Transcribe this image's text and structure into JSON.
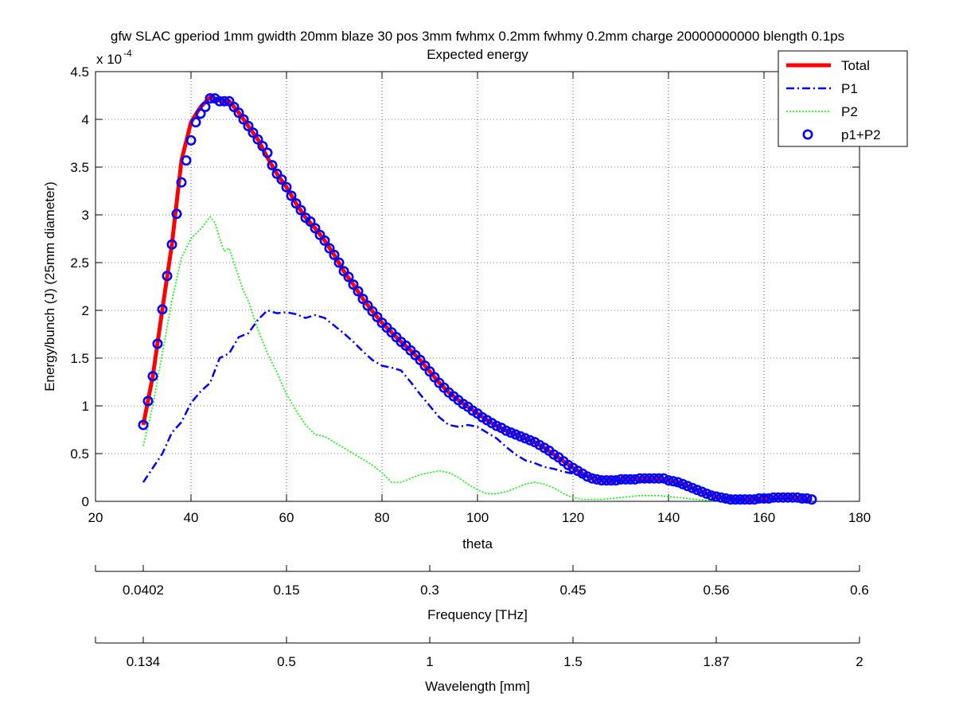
{
  "figure": {
    "title": "gfw SLAC gperiod 1mm gwidth 20mm blaze 30 pos 3mm fwhmx 0.2mm fwhmy 0.2mm charge 20000000000 blength 0.1ps",
    "subtitle": "Expected energy"
  },
  "chart_data": {
    "type": "line",
    "title": "gfw SLAC gperiod 1mm gwidth 20mm blaze 30 pos 3mm fwhmx 0.2mm fwhmy 0.2mm charge 20000000000 blength 0.1ps",
    "subtitle": "Expected energy",
    "xlabel": "theta",
    "ylabel": "Energy/bunch (J)  (25mm diameter)",
    "y_multiplier_label": "x 10",
    "y_multiplier_exponent": "-4",
    "xlim": [
      20,
      180
    ],
    "ylim": [
      0,
      0.00045
    ],
    "grid": true,
    "legend_position": "top-right",
    "x_ticks": [
      "20",
      "40",
      "60",
      "80",
      "100",
      "120",
      "140",
      "160",
      "180"
    ],
    "y_ticks": [
      "0",
      "0.5",
      "1",
      "1.5",
      "2",
      "2.5",
      "3",
      "3.5",
      "4",
      "4.5"
    ],
    "x_tick_values": [
      20,
      40,
      60,
      80,
      100,
      120,
      140,
      160,
      180
    ],
    "y_tick_values": [
      0,
      0.5,
      1,
      1.5,
      2,
      2.5,
      3,
      3.5,
      4,
      4.5
    ],
    "secondary_axes": [
      {
        "label": "Frequency [THz]",
        "ticks": [
          {
            "theta": 30,
            "label": "0.0402"
          },
          {
            "theta": 60,
            "label": "0.15"
          },
          {
            "theta": 90,
            "label": "0.3"
          },
          {
            "theta": 120,
            "label": "0.45"
          },
          {
            "theta": 150,
            "label": "0.56"
          },
          {
            "theta": 180,
            "label": "0.6"
          }
        ]
      },
      {
        "label": "Wavelength [mm]",
        "ticks": [
          {
            "theta": 30,
            "label": "0.134"
          },
          {
            "theta": 60,
            "label": "0.5"
          },
          {
            "theta": 90,
            "label": "1"
          },
          {
            "theta": 120,
            "label": "1.5"
          },
          {
            "theta": 150,
            "label": "1.87"
          },
          {
            "theta": 180,
            "label": "2"
          }
        ]
      }
    ],
    "series": [
      {
        "name": "Total",
        "color": "#ff0000",
        "style": "solid-thick",
        "x": [
          30,
          32,
          34,
          36,
          38,
          40,
          42,
          44,
          45,
          46,
          48,
          50,
          52,
          54,
          56,
          58,
          60,
          62,
          64,
          66,
          68,
          70,
          72,
          74,
          76,
          78,
          80,
          82,
          84,
          86,
          88,
          90,
          92,
          94,
          96,
          98,
          100,
          102,
          104,
          106,
          108,
          110,
          112,
          114,
          116,
          118,
          120,
          122,
          124,
          126,
          128,
          130,
          132,
          134,
          136,
          138,
          140,
          142,
          144,
          146,
          148,
          150,
          152,
          154,
          156,
          158,
          160,
          162,
          164,
          166,
          168,
          170
        ],
        "y": [
          0.8,
          1.31,
          2.01,
          2.69,
          3.57,
          3.97,
          4.13,
          4.23,
          4.22,
          4.2,
          4.19,
          4.07,
          3.93,
          3.79,
          3.6,
          3.43,
          3.29,
          3.12,
          2.97,
          2.86,
          2.73,
          2.58,
          2.41,
          2.27,
          2.12,
          1.99,
          1.87,
          1.77,
          1.67,
          1.58,
          1.48,
          1.36,
          1.24,
          1.14,
          1.06,
          0.99,
          0.92,
          0.85,
          0.79,
          0.74,
          0.7,
          0.66,
          0.62,
          0.56,
          0.49,
          0.42,
          0.35,
          0.29,
          0.24,
          0.22,
          0.22,
          0.23,
          0.23,
          0.24,
          0.24,
          0.24,
          0.22,
          0.2,
          0.16,
          0.12,
          0.08,
          0.05,
          0.03,
          0.02,
          0.02,
          0.02,
          0.03,
          0.04,
          0.04,
          0.04,
          0.03,
          0.02
        ]
      },
      {
        "name": "P1",
        "color": "#0000ff",
        "style": "dash-dot",
        "x": [
          30,
          32,
          34,
          36,
          38,
          40,
          42,
          44,
          46,
          48,
          50,
          52,
          54,
          56,
          58,
          60,
          62,
          64,
          66,
          68,
          70,
          72,
          74,
          76,
          78,
          80,
          82,
          84,
          86,
          88,
          90,
          92,
          94,
          96,
          98,
          100,
          102,
          104,
          106,
          108,
          110,
          112,
          114,
          116,
          118,
          120,
          122,
          124,
          126,
          128,
          130,
          132,
          134,
          136,
          138,
          140,
          142,
          144,
          146,
          148,
          150,
          152,
          154,
          156,
          158,
          160,
          162,
          164,
          166,
          168,
          170
        ],
        "y": [
          0.2,
          0.35,
          0.5,
          0.72,
          0.83,
          1.03,
          1.15,
          1.24,
          1.5,
          1.55,
          1.72,
          1.76,
          1.9,
          2.0,
          1.97,
          1.98,
          1.96,
          1.92,
          1.95,
          1.92,
          1.84,
          1.76,
          1.67,
          1.57,
          1.48,
          1.42,
          1.4,
          1.37,
          1.25,
          1.12,
          1.0,
          0.88,
          0.8,
          0.78,
          0.8,
          0.78,
          0.72,
          0.66,
          0.57,
          0.49,
          0.43,
          0.4,
          0.36,
          0.34,
          0.31,
          0.29,
          0.27,
          0.25,
          0.23,
          0.22,
          0.22,
          0.22,
          0.22,
          0.22,
          0.21,
          0.2,
          0.18,
          0.15,
          0.11,
          0.07,
          0.04,
          0.03,
          0.02,
          0.02,
          0.02,
          0.02,
          0.03,
          0.03,
          0.03,
          0.02,
          0.02
        ]
      },
      {
        "name": "P2",
        "color": "#00ff00",
        "style": "dotted",
        "x": [
          30,
          32,
          34,
          36,
          38,
          40,
          42,
          44,
          45,
          46,
          47,
          48,
          50,
          51,
          52,
          54,
          56,
          58,
          60,
          62,
          64,
          66,
          68,
          70,
          72,
          74,
          76,
          78,
          80,
          82,
          84,
          86,
          88,
          90,
          92,
          94,
          96,
          98,
          100,
          102,
          104,
          106,
          108,
          110,
          112,
          114,
          116,
          118,
          120,
          122,
          124,
          126,
          128,
          130,
          132,
          134,
          136,
          138,
          140,
          142,
          144,
          146,
          148,
          150
        ],
        "y": [
          0.58,
          1.0,
          1.55,
          2.1,
          2.55,
          2.75,
          2.85,
          2.98,
          2.92,
          2.75,
          2.62,
          2.65,
          2.35,
          2.2,
          2.1,
          1.8,
          1.55,
          1.35,
          1.12,
          0.95,
          0.8,
          0.7,
          0.68,
          0.62,
          0.56,
          0.5,
          0.44,
          0.38,
          0.3,
          0.2,
          0.2,
          0.24,
          0.28,
          0.3,
          0.32,
          0.3,
          0.25,
          0.18,
          0.12,
          0.08,
          0.08,
          0.1,
          0.14,
          0.18,
          0.2,
          0.18,
          0.14,
          0.08,
          0.04,
          0.02,
          0.02,
          0.02,
          0.03,
          0.04,
          0.05,
          0.06,
          0.06,
          0.06,
          0.05,
          0.04,
          0.03,
          0.02,
          0.01,
          0.0
        ]
      },
      {
        "name": "p1+P2",
        "color": "#0000ff",
        "style": "circle-markers",
        "x": [
          30,
          31,
          32,
          33,
          34,
          35,
          36,
          37,
          38,
          39,
          40,
          41,
          42,
          43,
          44,
          45,
          46,
          47,
          48,
          49,
          50,
          51,
          52,
          53,
          54,
          55,
          56,
          57,
          58,
          59,
          60,
          61,
          62,
          63,
          64,
          65,
          66,
          67,
          68,
          69,
          70,
          71,
          72,
          73,
          74,
          75,
          76,
          77,
          78,
          79,
          80,
          81,
          82,
          83,
          84,
          85,
          86,
          87,
          88,
          89,
          90,
          91,
          92,
          93,
          94,
          95,
          96,
          97,
          98,
          99,
          100,
          101,
          102,
          103,
          104,
          105,
          106,
          107,
          108,
          109,
          110,
          111,
          112,
          113,
          114,
          115,
          116,
          117,
          118,
          119,
          120,
          121,
          122,
          123,
          124,
          125,
          126,
          127,
          128,
          129,
          130,
          131,
          132,
          133,
          134,
          135,
          136,
          137,
          138,
          139,
          140,
          141,
          142,
          143,
          144,
          145,
          146,
          147,
          148,
          149,
          150,
          151,
          152,
          153,
          154,
          155,
          156,
          157,
          158,
          159,
          160,
          161,
          162,
          163,
          164,
          165,
          166,
          167,
          168,
          169,
          170
        ],
        "y": [
          0.8,
          1.05,
          1.31,
          1.65,
          2.01,
          2.36,
          2.69,
          3.01,
          3.34,
          3.57,
          3.78,
          3.97,
          4.06,
          4.13,
          4.22,
          4.22,
          4.19,
          4.19,
          4.19,
          4.13,
          4.07,
          4.0,
          3.93,
          3.86,
          3.79,
          3.72,
          3.65,
          3.52,
          3.43,
          3.37,
          3.29,
          3.2,
          3.12,
          3.05,
          2.97,
          2.93,
          2.86,
          2.79,
          2.73,
          2.65,
          2.58,
          2.5,
          2.41,
          2.35,
          2.27,
          2.2,
          2.12,
          2.05,
          1.99,
          1.93,
          1.87,
          1.82,
          1.77,
          1.72,
          1.67,
          1.63,
          1.58,
          1.53,
          1.48,
          1.42,
          1.36,
          1.3,
          1.24,
          1.19,
          1.14,
          1.1,
          1.06,
          1.02,
          0.99,
          0.95,
          0.92,
          0.88,
          0.85,
          0.82,
          0.79,
          0.77,
          0.74,
          0.72,
          0.7,
          0.68,
          0.66,
          0.64,
          0.62,
          0.59,
          0.56,
          0.53,
          0.49,
          0.46,
          0.42,
          0.38,
          0.35,
          0.32,
          0.29,
          0.26,
          0.24,
          0.23,
          0.22,
          0.22,
          0.22,
          0.22,
          0.23,
          0.23,
          0.23,
          0.23,
          0.24,
          0.24,
          0.24,
          0.24,
          0.24,
          0.24,
          0.22,
          0.21,
          0.2,
          0.18,
          0.16,
          0.14,
          0.12,
          0.1,
          0.08,
          0.06,
          0.05,
          0.04,
          0.03,
          0.02,
          0.02,
          0.02,
          0.02,
          0.02,
          0.02,
          0.03,
          0.03,
          0.03,
          0.04,
          0.04,
          0.04,
          0.04,
          0.04,
          0.04,
          0.03,
          0.03,
          0.02
        ]
      }
    ]
  }
}
